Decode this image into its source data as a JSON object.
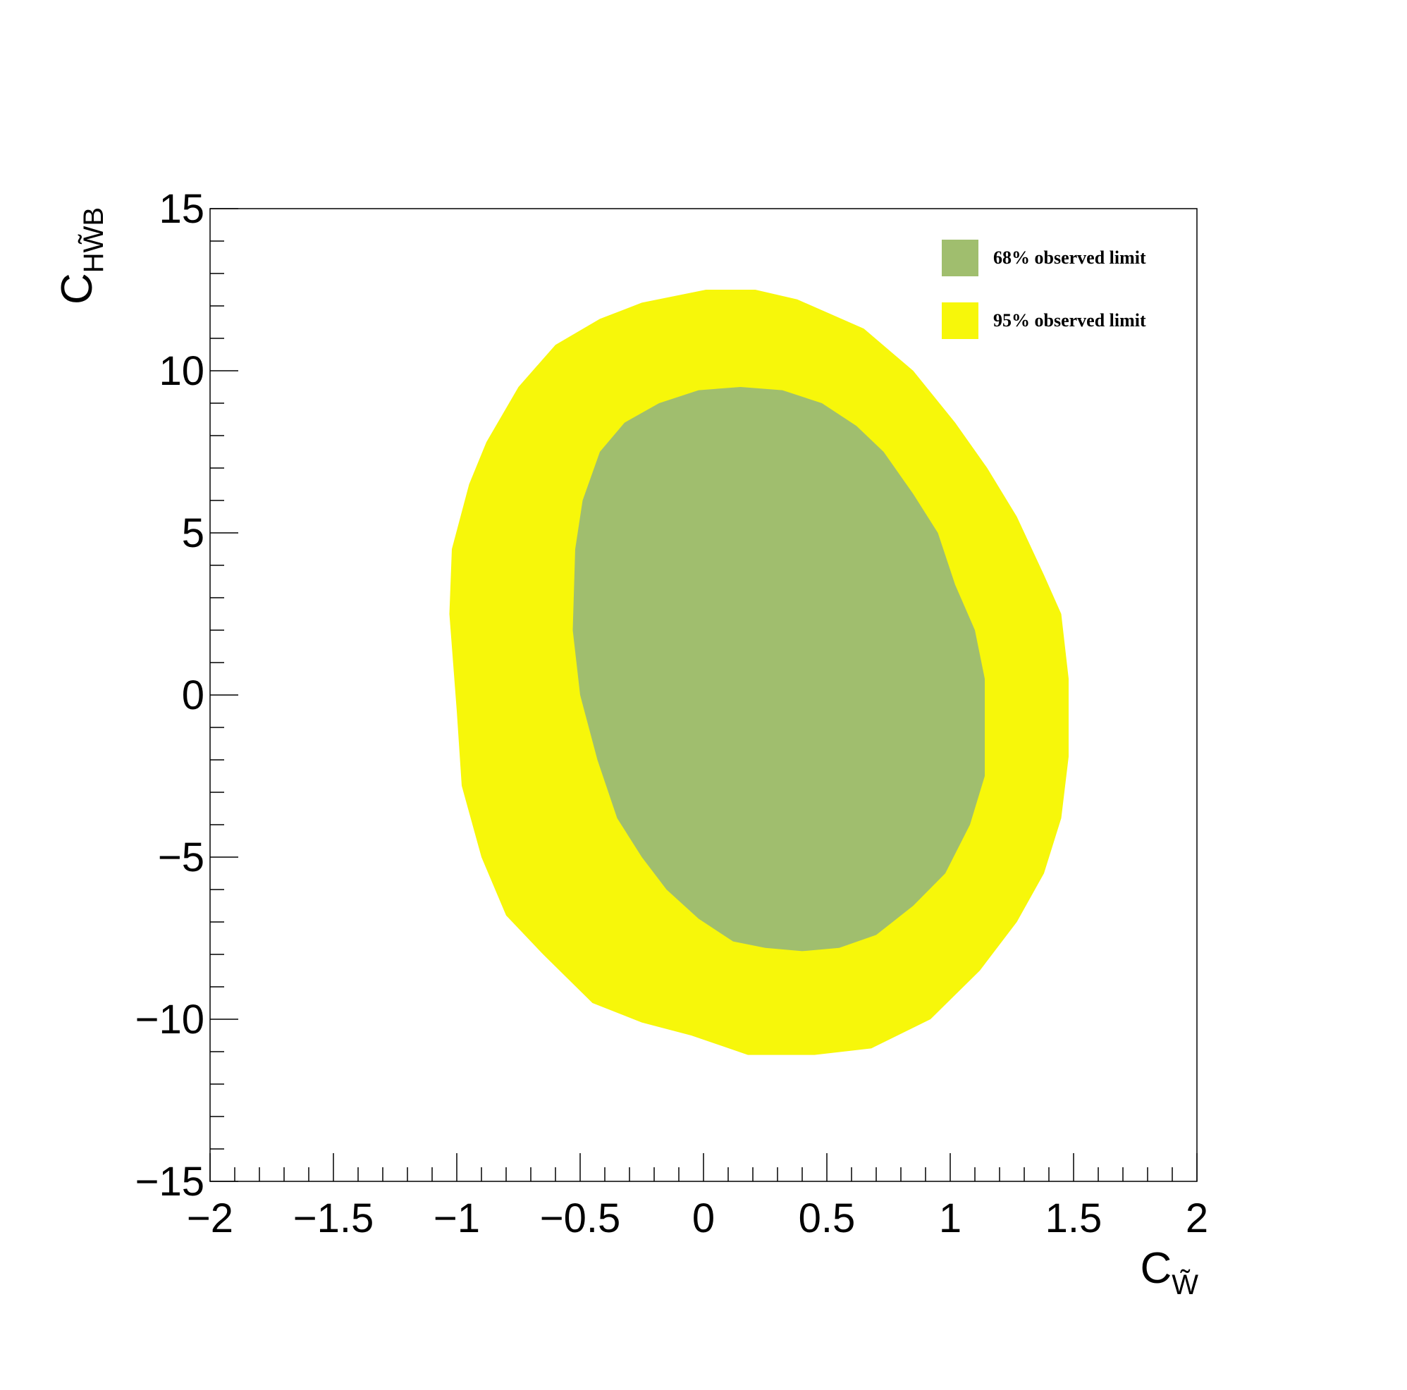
{
  "chart_data": {
    "type": "contour-region",
    "xlabel": {
      "base": "C",
      "sub": "W̃"
    },
    "ylabel": {
      "base": "C",
      "sub": "HW̃B"
    },
    "xlim": [
      -2,
      2
    ],
    "ylim": [
      -15,
      15
    ],
    "xticks": [
      -2,
      -1.5,
      -1,
      -0.5,
      0,
      0.5,
      1,
      1.5,
      2
    ],
    "xtick_labels": [
      "−2",
      "−1.5",
      "−1",
      "−0.5",
      "0",
      "0.5",
      "1",
      "1.5",
      "2"
    ],
    "yticks": [
      15,
      10,
      5,
      0,
      -5,
      -10,
      -15
    ],
    "ytick_labels": [
      "15",
      "10",
      "5",
      "0",
      "−5",
      "−10",
      "−15"
    ],
    "legend_position": "top-right",
    "grid": false,
    "series": [
      {
        "name": "95% observed limit",
        "color": "#f7f70a",
        "region": [
          [
            0.01,
            12.5
          ],
          [
            0.21,
            12.5
          ],
          [
            0.38,
            12.2
          ],
          [
            0.65,
            11.3
          ],
          [
            0.85,
            10.0
          ],
          [
            1.02,
            8.4
          ],
          [
            1.15,
            7.0
          ],
          [
            1.27,
            5.5
          ],
          [
            1.38,
            3.7
          ],
          [
            1.45,
            2.5
          ],
          [
            1.48,
            0.5
          ],
          [
            1.48,
            -1.9
          ],
          [
            1.45,
            -3.8
          ],
          [
            1.38,
            -5.5
          ],
          [
            1.27,
            -7.0
          ],
          [
            1.12,
            -8.5
          ],
          [
            0.92,
            -10.0
          ],
          [
            0.68,
            -10.9
          ],
          [
            0.45,
            -11.1
          ],
          [
            0.18,
            -11.1
          ],
          [
            -0.05,
            -10.5
          ],
          [
            -0.25,
            -10.1
          ],
          [
            -0.45,
            -9.5
          ],
          [
            -0.65,
            -8.0
          ],
          [
            -0.8,
            -6.8
          ],
          [
            -0.9,
            -5.0
          ],
          [
            -0.98,
            -2.8
          ],
          [
            -1.0,
            -0.5
          ],
          [
            -1.03,
            2.5
          ],
          [
            -1.02,
            4.5
          ],
          [
            -0.95,
            6.5
          ],
          [
            -0.88,
            7.8
          ],
          [
            -0.75,
            9.5
          ],
          [
            -0.6,
            10.8
          ],
          [
            -0.42,
            11.6
          ],
          [
            -0.25,
            12.1
          ]
        ]
      },
      {
        "name": "68% observed limit",
        "color": "#a0be6e",
        "region": [
          [
            0.15,
            9.5
          ],
          [
            0.32,
            9.4
          ],
          [
            0.48,
            9.0
          ],
          [
            0.62,
            8.3
          ],
          [
            0.73,
            7.5
          ],
          [
            0.85,
            6.2
          ],
          [
            0.95,
            5.0
          ],
          [
            1.02,
            3.4
          ],
          [
            1.1,
            2.0
          ],
          [
            1.14,
            0.5
          ],
          [
            1.14,
            -2.5
          ],
          [
            1.08,
            -4.0
          ],
          [
            0.98,
            -5.5
          ],
          [
            0.85,
            -6.5
          ],
          [
            0.7,
            -7.4
          ],
          [
            0.55,
            -7.8
          ],
          [
            0.4,
            -7.9
          ],
          [
            0.25,
            -7.8
          ],
          [
            0.12,
            -7.6
          ],
          [
            -0.02,
            -6.9
          ],
          [
            -0.15,
            -6.0
          ],
          [
            -0.25,
            -5.0
          ],
          [
            -0.35,
            -3.8
          ],
          [
            -0.43,
            -2.0
          ],
          [
            -0.5,
            0.0
          ],
          [
            -0.53,
            2.0
          ],
          [
            -0.52,
            4.5
          ],
          [
            -0.49,
            6.0
          ],
          [
            -0.42,
            7.5
          ],
          [
            -0.32,
            8.4
          ],
          [
            -0.18,
            9.0
          ],
          [
            -0.02,
            9.4
          ]
        ]
      }
    ],
    "legend": [
      {
        "label": "68% observed limit",
        "color": "#a0be6e"
      },
      {
        "label": "95% observed limit",
        "color": "#f7f70a"
      }
    ]
  }
}
